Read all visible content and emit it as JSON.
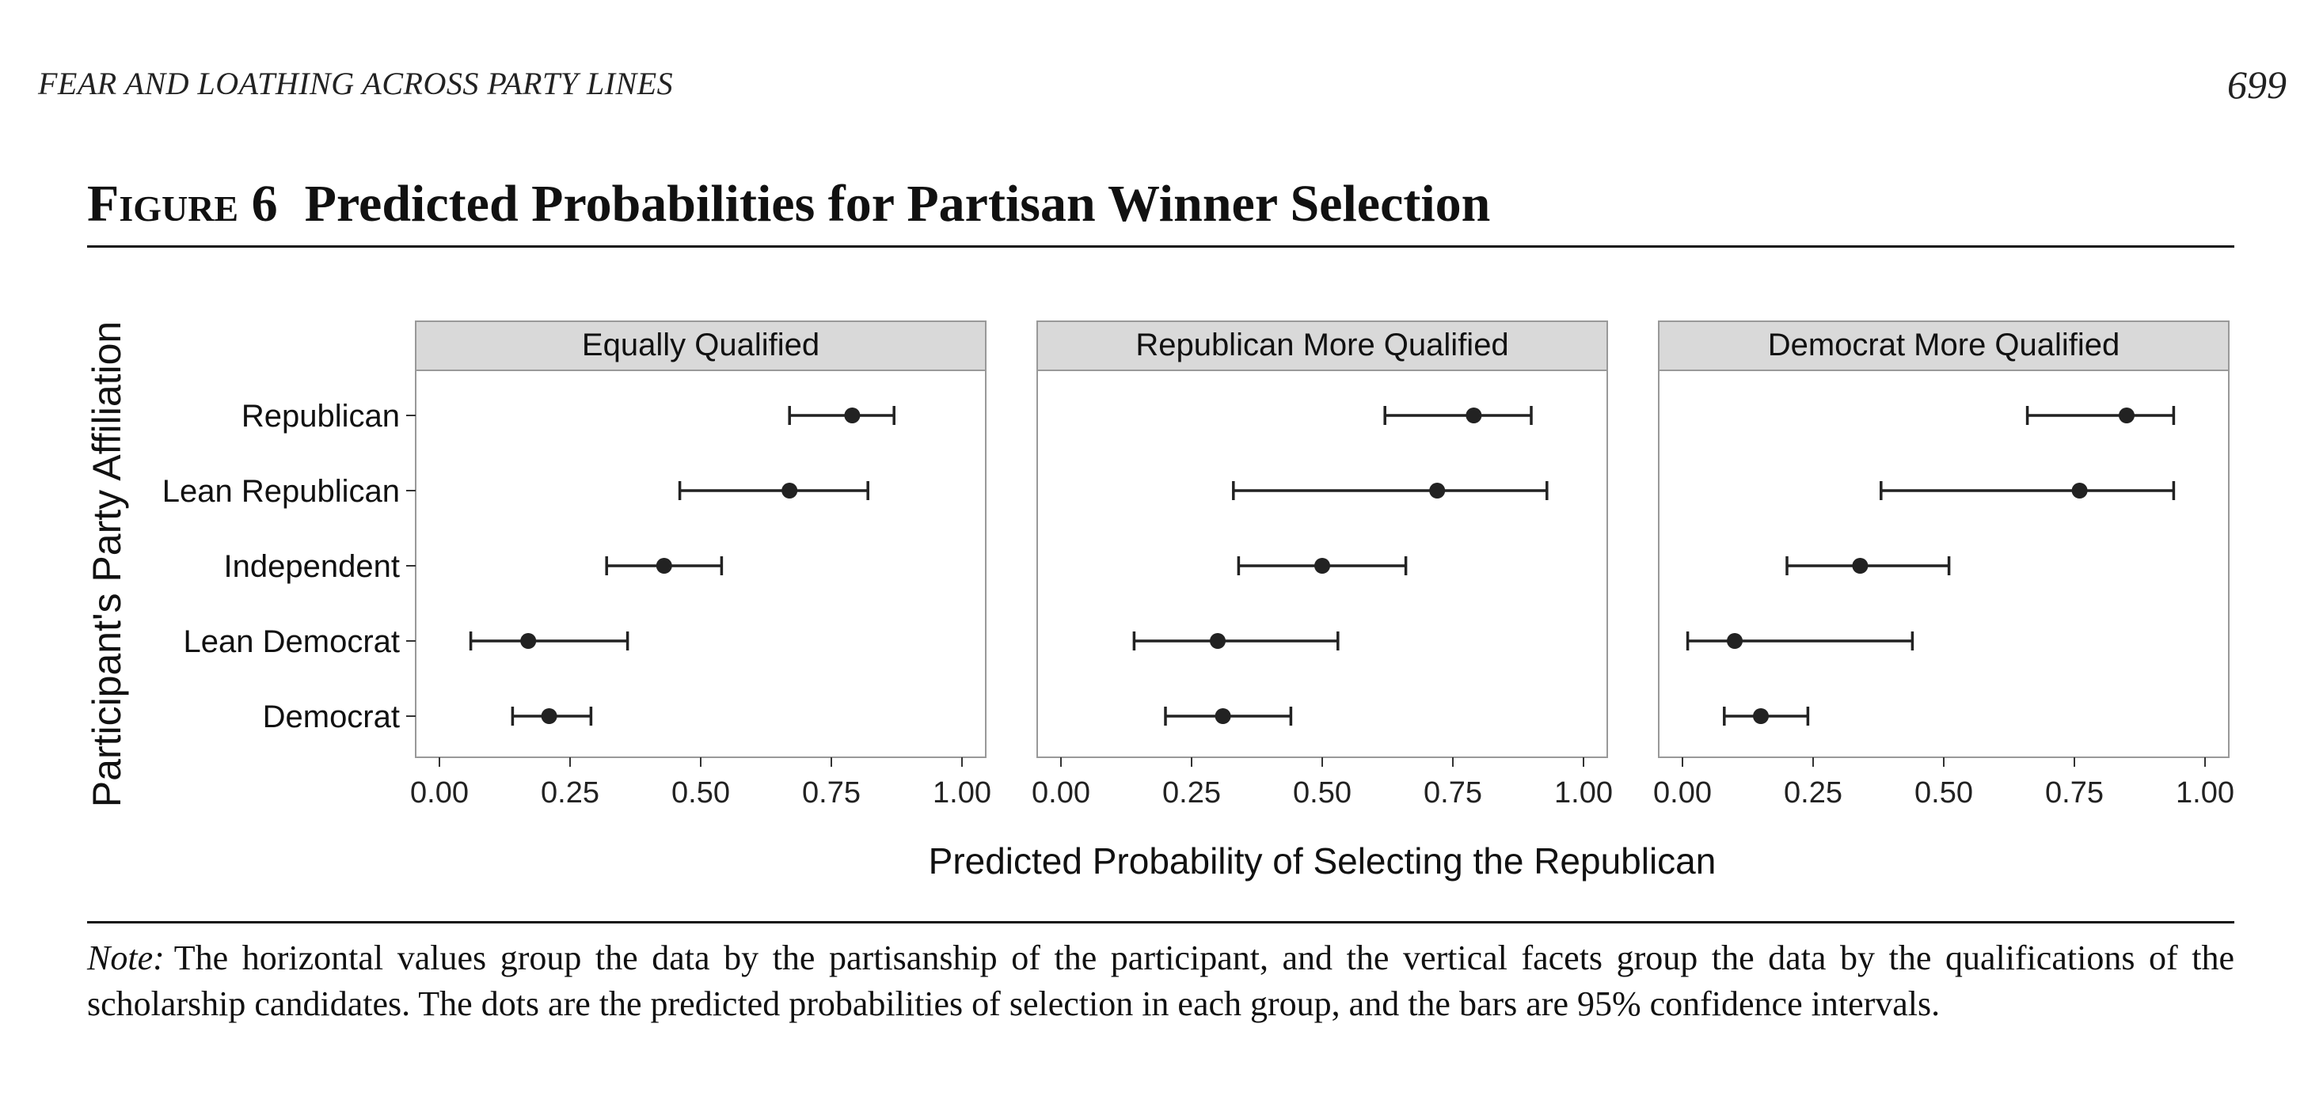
{
  "header": {
    "running_title": "FEAR AND LOATHING ACROSS PARTY LINES",
    "page_number": "699"
  },
  "figure": {
    "label": "Figure 6",
    "title": "Predicted Probabilities for Partisan Winner Selection"
  },
  "note": {
    "label": "Note:",
    "text": "The horizontal values group the data by the partisanship of the participant, and the vertical facets group the data by the qualifications of the scholarship candidates. The dots are the predicted probabilities of selection in each group, and the bars are 95% confidence intervals."
  },
  "chart_data": {
    "type": "scatter",
    "subtype": "dot-and-whisker",
    "xlabel": "Predicted Probability of Selecting the Republican",
    "ylabel": "Participant's Party Affiliation",
    "xlim": [
      0,
      1
    ],
    "xticks": [
      "0.00",
      "0.25",
      "0.50",
      "0.75",
      "1.00"
    ],
    "categories": [
      "Republican",
      "Lean Republican",
      "Independent",
      "Lean Democrat",
      "Democrat"
    ],
    "grid": false,
    "legend": "none",
    "colors": {
      "point": "#222222",
      "strip": "#d9d9d9",
      "panel_border": "#999999"
    },
    "facets": [
      {
        "name": "Equally Qualified",
        "points": [
          {
            "category": "Republican",
            "estimate": 0.79,
            "lower": 0.67,
            "upper": 0.87
          },
          {
            "category": "Lean Republican",
            "estimate": 0.67,
            "lower": 0.46,
            "upper": 0.82
          },
          {
            "category": "Independent",
            "estimate": 0.43,
            "lower": 0.32,
            "upper": 0.54
          },
          {
            "category": "Lean Democrat",
            "estimate": 0.17,
            "lower": 0.06,
            "upper": 0.36
          },
          {
            "category": "Democrat",
            "estimate": 0.21,
            "lower": 0.14,
            "upper": 0.29
          }
        ]
      },
      {
        "name": "Republican More Qualified",
        "points": [
          {
            "category": "Republican",
            "estimate": 0.79,
            "lower": 0.62,
            "upper": 0.9
          },
          {
            "category": "Lean Republican",
            "estimate": 0.72,
            "lower": 0.33,
            "upper": 0.93
          },
          {
            "category": "Independent",
            "estimate": 0.5,
            "lower": 0.34,
            "upper": 0.66
          },
          {
            "category": "Lean Democrat",
            "estimate": 0.3,
            "lower": 0.14,
            "upper": 0.53
          },
          {
            "category": "Democrat",
            "estimate": 0.31,
            "lower": 0.2,
            "upper": 0.44
          }
        ]
      },
      {
        "name": "Democrat More Qualified",
        "points": [
          {
            "category": "Republican",
            "estimate": 0.85,
            "lower": 0.66,
            "upper": 0.94
          },
          {
            "category": "Lean Republican",
            "estimate": 0.76,
            "lower": 0.38,
            "upper": 0.94
          },
          {
            "category": "Independent",
            "estimate": 0.34,
            "lower": 0.2,
            "upper": 0.51
          },
          {
            "category": "Lean Democrat",
            "estimate": 0.1,
            "lower": 0.01,
            "upper": 0.44
          },
          {
            "category": "Democrat",
            "estimate": 0.15,
            "lower": 0.08,
            "upper": 0.24
          }
        ]
      }
    ]
  }
}
